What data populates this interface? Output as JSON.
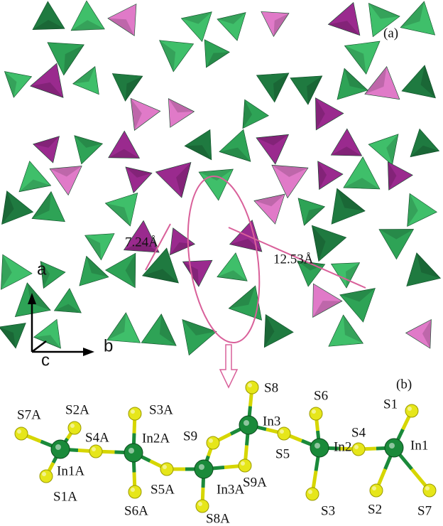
{
  "panel_a": {
    "label": "(a)",
    "distances": [
      "7.24Å",
      "12.53Å"
    ],
    "axes": [
      "a",
      "b",
      "c"
    ]
  },
  "panel_b": {
    "label": "(b)",
    "atoms": [
      "S7A",
      "S2A",
      "S4A",
      "In1A",
      "S1A",
      "S3A",
      "In2A",
      "S6A",
      "S5A",
      "S9",
      "In3A",
      "S8A",
      "S9A",
      "S8",
      "In3",
      "S5",
      "S6",
      "In2",
      "S3",
      "S4",
      "S1",
      "In1",
      "S2",
      "S7"
    ]
  }
}
